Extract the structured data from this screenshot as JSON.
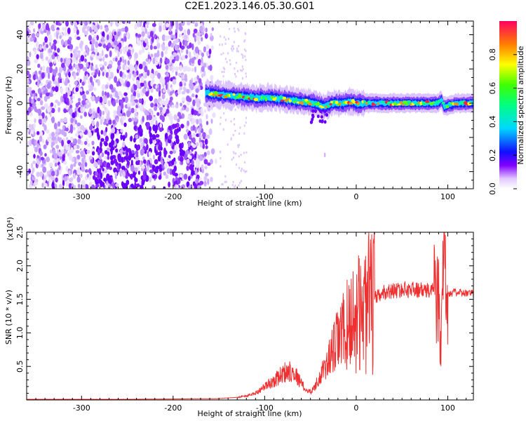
{
  "title": "C2E1.2023.146.05.30.G01",
  "chart_data": [
    {
      "type": "heatmap",
      "xlabel": "Height of straight line (km)",
      "ylabel": "Frequency (Hz)",
      "xlim": [
        -360,
        128
      ],
      "ylim": [
        -50,
        48
      ],
      "x_ticks": [
        -300,
        -200,
        -100,
        0,
        100
      ],
      "x_tick_labels": [
        "-300",
        "-200",
        "-100",
        "0",
        "100"
      ],
      "y_ticks": [
        -40,
        -20,
        0,
        20,
        40
      ],
      "y_tick_labels": [
        "-40",
        "-20",
        "0",
        "20",
        "40"
      ],
      "colorbar": {
        "label": "Normalized spectral amplitude",
        "range": [
          0,
          1
        ],
        "ticks": [
          0,
          0.2,
          0.4,
          0.6,
          0.8
        ],
        "tick_labels": [
          "0.0",
          "0.2",
          "0.4",
          "0.6",
          "0.8"
        ]
      },
      "ridge": {
        "x": [
          -165,
          -150,
          -130,
          -110,
          -90,
          -75,
          -60,
          -45,
          -35,
          -25,
          -15,
          -5,
          0,
          20,
          40,
          60,
          80,
          90,
          93,
          96,
          110,
          128
        ],
        "y": [
          6,
          5,
          4,
          3,
          3,
          2,
          1,
          0,
          -2,
          0,
          0,
          1,
          0,
          0,
          0,
          0,
          0,
          0,
          2,
          -2,
          0,
          0
        ]
      }
    },
    {
      "type": "line",
      "xlabel": "Height of straight line (km)",
      "ylabel": "SNR (10 * v/v)",
      "y_scale_label": "(x10⁴)",
      "xlim": [
        -360,
        128
      ],
      "ylim": [
        0,
        2.5
      ],
      "x_ticks": [
        -300,
        -200,
        -100,
        0,
        100
      ],
      "x_tick_labels": [
        "-300",
        "-200",
        "-100",
        "0",
        "100"
      ],
      "y_ticks": [
        0.5,
        1.0,
        1.5,
        2.0,
        2.5
      ],
      "y_tick_labels": [
        "0.5",
        "1.0",
        "1.5",
        "2.0",
        "2.5"
      ],
      "color": "#f03030",
      "series": [
        {
          "x": [
            -360,
            -250,
            -150,
            -130,
            -120,
            -110,
            -100,
            -90,
            -80,
            -70,
            -65,
            -60,
            -55,
            -50,
            -45,
            -40,
            -35,
            -30,
            -25,
            -20,
            -15,
            -10,
            -5,
            0,
            5,
            10,
            20,
            30,
            40,
            60,
            80,
            85,
            90,
            92,
            94,
            96,
            98,
            100,
            110,
            128
          ],
          "y": [
            0.01,
            0.01,
            0.02,
            0.04,
            0.06,
            0.1,
            0.2,
            0.28,
            0.4,
            0.45,
            0.35,
            0.25,
            0.15,
            0.12,
            0.2,
            0.35,
            0.45,
            0.6,
            0.75,
            0.9,
            1.0,
            1.1,
            1.2,
            1.25,
            1.3,
            1.4,
            1.5,
            1.6,
            1.63,
            1.65,
            1.62,
            1.7,
            1.5,
            0.6,
            1.9,
            2.2,
            1.8,
            1.6,
            1.6,
            1.58
          ]
        }
      ]
    }
  ]
}
